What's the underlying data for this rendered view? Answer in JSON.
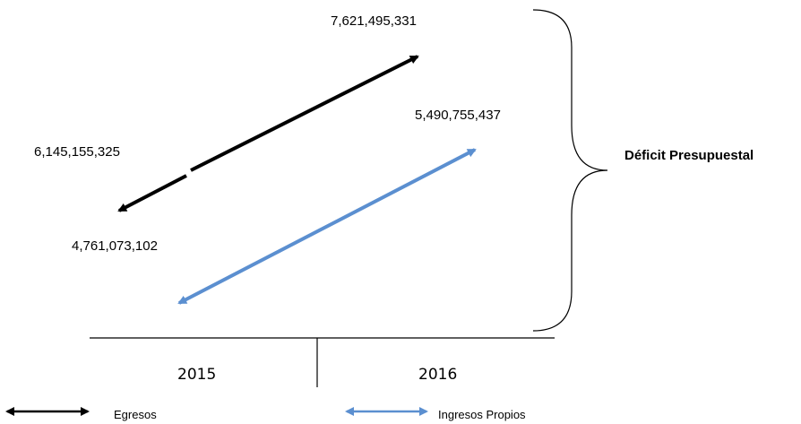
{
  "title": "",
  "colors": {
    "egresos": "#000000",
    "ingresos": "#5B8FD0"
  },
  "labels": {
    "egresos_2016": "7,621,495,331",
    "ingresos_2016": "5,490,755,437",
    "egresos_2015": "6,145,155,325",
    "ingresos_2015": "4,761,073,102",
    "deficit": "Déficit Presupuestal",
    "year_2015": "2015",
    "year_2016": "2016"
  },
  "legend": {
    "egresos": "Egresos",
    "ingresos": "Ingresos Propios"
  },
  "series": [
    {
      "name": "Egresos",
      "points": [
        {
          "year": "2015",
          "value": 6145155325
        },
        {
          "year": "2016",
          "value": 7621495331
        }
      ]
    },
    {
      "name": "Ingresos Propios",
      "points": [
        {
          "year": "2015",
          "value": 4761073102
        },
        {
          "year": "2016",
          "value": 5490755437
        }
      ]
    }
  ]
}
